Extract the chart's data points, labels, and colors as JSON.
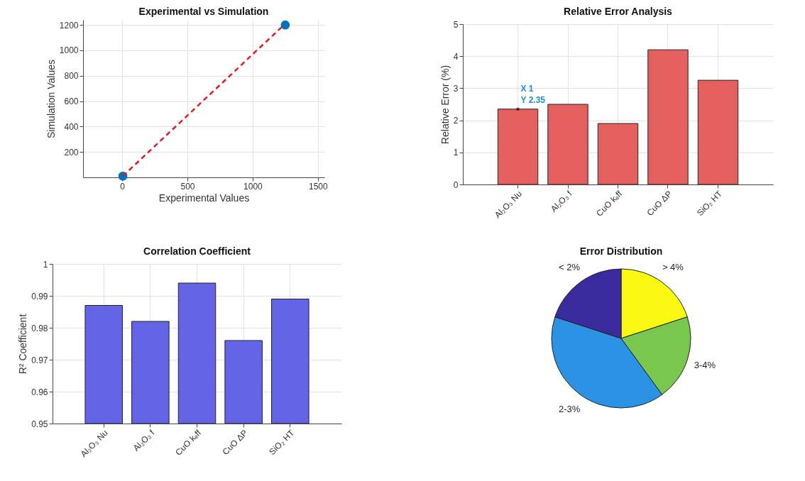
{
  "chart_data": [
    {
      "type": "scatter",
      "title": "Experimental vs Simulation",
      "xlabel": "Experimental Values",
      "ylabel": "Simulation Values",
      "xlim": [
        -300,
        1550
      ],
      "xticks": [
        0,
        500,
        1000,
        1500
      ],
      "ylim": [
        0,
        1240
      ],
      "yticks": [
        200,
        400,
        600,
        800,
        1000,
        1200
      ],
      "grid": true,
      "marker": "circle",
      "series": [
        {
          "type": "scatter",
          "color": "#0072bd",
          "x": [
            5,
            1250
          ],
          "values": [
            10,
            1200
          ]
        },
        {
          "type": "line",
          "color": "#e41a1c",
          "line_style": "dashed",
          "marker": "none",
          "x": [
            5,
            1240
          ],
          "values": [
            10,
            1200
          ]
        }
      ]
    },
    {
      "type": "bar",
      "title": "Relative Error Analysis",
      "ylabel": "Relative Error (%)",
      "categories": [
        "Al₂O₃ Nu",
        "Al₂O₃ f",
        "CuO kₑff",
        "CuO ΔP",
        "SiO₂ HT"
      ],
      "values": [
        2.35,
        2.5,
        1.9,
        4.2,
        3.25
      ],
      "color": "#e3605f",
      "ylim": [
        0,
        5
      ],
      "yticks": [
        0,
        1,
        2,
        3,
        4,
        5
      ],
      "grid": true,
      "annotations": [
        {
          "text": "X 1\nY 2.35",
          "x": "Al₂O₃ Nu",
          "y": 2.35
        }
      ]
    },
    {
      "type": "bar",
      "title": "Correlation Coefficient",
      "ylabel": "R² Coefficient",
      "categories": [
        "Al₂O₃ Nu",
        "Al₂O₃ f",
        "CuO kₑff",
        "CuO ΔP",
        "SiO₂ HT"
      ],
      "values": [
        0.987,
        0.982,
        0.994,
        0.976,
        0.989
      ],
      "color": "#6464e6",
      "ylim": [
        0.95,
        1
      ],
      "yticks": [
        0.95,
        0.96,
        0.97,
        0.98,
        0.99,
        1
      ],
      "grid": true
    },
    {
      "type": "pie",
      "title": "Error Distribution",
      "categories": [
        "> 4%",
        "3-4%",
        "2-3%",
        "< 2%"
      ],
      "values": [
        20,
        20,
        40,
        20
      ],
      "colors": [
        "#f9f912",
        "#7ac74f",
        "#2b92e4",
        "#3b2a9e"
      ]
    }
  ]
}
